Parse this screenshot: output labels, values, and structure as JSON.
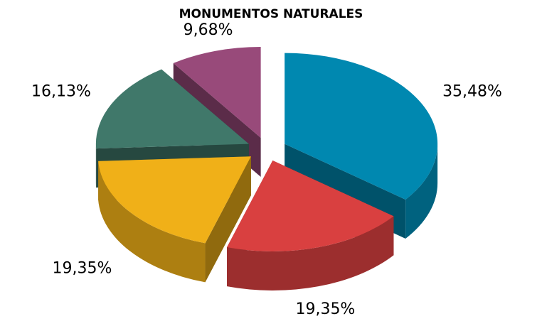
{
  "chart_data": {
    "type": "pie",
    "title": "MONUMENTOS NATURALES",
    "values": [
      35.48,
      19.35,
      19.35,
      16.13,
      9.68
    ],
    "value_labels": [
      "35,48%",
      "19,35%",
      "19,35%",
      "16,13%",
      "9,68%"
    ],
    "colors": [
      "#0088b0",
      "#d94040",
      "#f0b018",
      "#40786a",
      "#984a7a"
    ]
  }
}
